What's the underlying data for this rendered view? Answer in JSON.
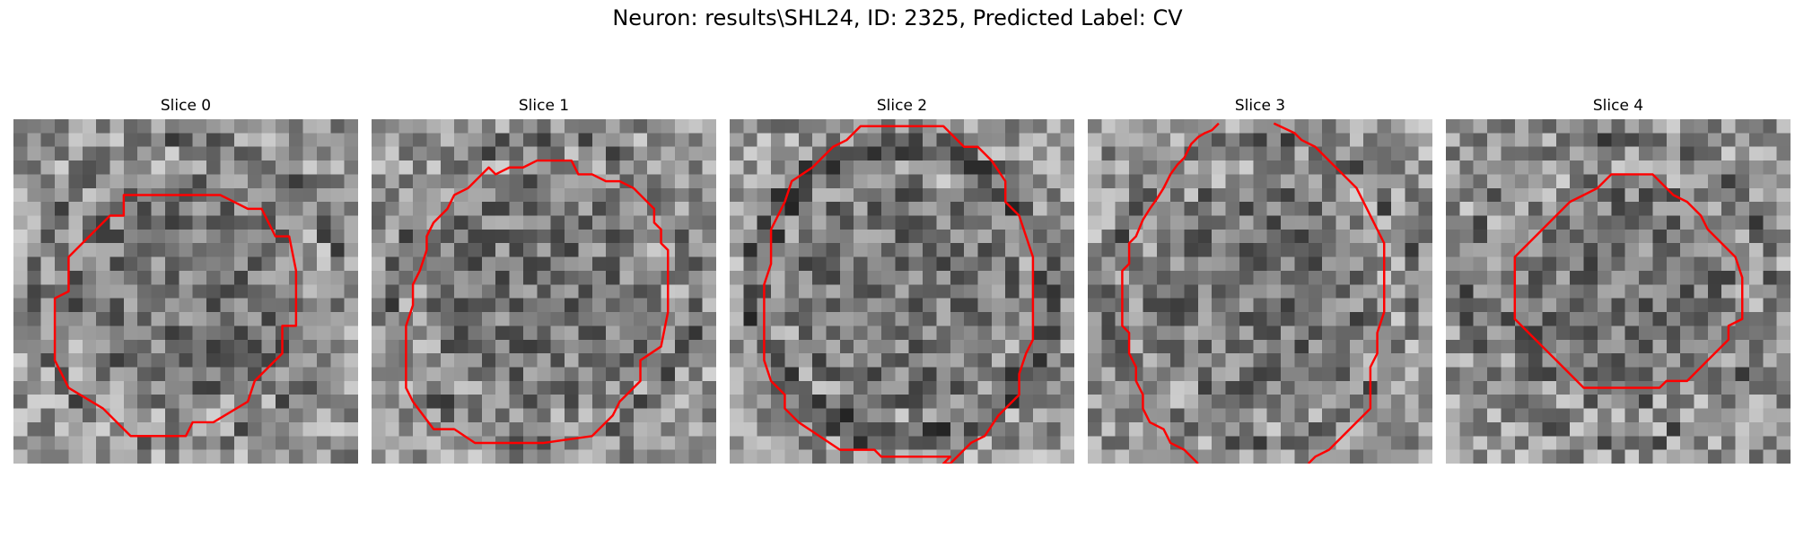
{
  "figure": {
    "title": "Neuron: results\\SHL24, ID: 2325, Predicted Label: CV"
  },
  "contour_color": "#ff0000",
  "colormap": "gray",
  "grid_cells": 25,
  "panels": [
    {
      "title": "Slice 0",
      "seed": 11,
      "dark_ring": false,
      "contour": [
        [
          8,
          5.5
        ],
        [
          15,
          5.5
        ],
        [
          17,
          6.5
        ],
        [
          18,
          6.5
        ],
        [
          19,
          8.5
        ],
        [
          20,
          8.5
        ],
        [
          20.5,
          11
        ],
        [
          20.5,
          15
        ],
        [
          19.5,
          15
        ],
        [
          19.5,
          17
        ],
        [
          17.5,
          19
        ],
        [
          17,
          20.5
        ],
        [
          14.5,
          22
        ],
        [
          13,
          22
        ],
        [
          12.5,
          23
        ],
        [
          8.5,
          23
        ],
        [
          8,
          22.5
        ],
        [
          6.5,
          21
        ],
        [
          4,
          19.5
        ],
        [
          3,
          17.5
        ],
        [
          3,
          13
        ],
        [
          4,
          12.5
        ],
        [
          4,
          10
        ],
        [
          7,
          7
        ],
        [
          8,
          7
        ]
      ]
    },
    {
      "title": "Slice 1",
      "seed": 23,
      "dark_ring": false,
      "contour": [
        [
          12,
          3
        ],
        [
          14.5,
          3
        ],
        [
          15,
          4
        ],
        [
          16,
          4
        ],
        [
          17,
          4.5
        ],
        [
          18,
          4.5
        ],
        [
          19,
          5
        ],
        [
          20.5,
          6.5
        ],
        [
          20.5,
          7.5
        ],
        [
          21,
          8
        ],
        [
          21,
          9
        ],
        [
          21.5,
          9.5
        ],
        [
          21.5,
          10.5
        ],
        [
          21.5,
          14
        ],
        [
          21,
          16.5
        ],
        [
          19.5,
          17.5
        ],
        [
          19.5,
          19
        ],
        [
          18,
          20.5
        ],
        [
          17.5,
          21.5
        ],
        [
          16,
          23
        ],
        [
          12.5,
          23.5
        ],
        [
          7.5,
          23.5
        ],
        [
          6,
          22.5
        ],
        [
          4.5,
          22.5
        ],
        [
          3,
          20.5
        ],
        [
          2.5,
          19.5
        ],
        [
          2.5,
          15
        ],
        [
          3,
          13.5
        ],
        [
          3,
          12
        ],
        [
          3.5,
          11
        ],
        [
          4,
          9.5
        ],
        [
          4,
          8.5
        ],
        [
          4.5,
          7.5
        ],
        [
          5,
          7
        ],
        [
          5.5,
          6.5
        ],
        [
          6,
          5.5
        ],
        [
          7,
          5
        ],
        [
          8,
          4
        ],
        [
          8.5,
          3.5
        ],
        [
          9,
          4
        ],
        [
          10,
          3.5
        ],
        [
          11,
          3.5
        ],
        [
          12,
          3
        ]
      ]
    },
    {
      "title": "Slice 2",
      "seed": 37,
      "dark_ring": true,
      "contour": [
        [
          10,
          0.5
        ],
        [
          15.5,
          0.5
        ],
        [
          17,
          2
        ],
        [
          18,
          2
        ],
        [
          19,
          3
        ],
        [
          20,
          4.5
        ],
        [
          20,
          6
        ],
        [
          21,
          7
        ],
        [
          21.5,
          8.5
        ],
        [
          22,
          10
        ],
        [
          22,
          16
        ],
        [
          21.5,
          17
        ],
        [
          21,
          18.5
        ],
        [
          21,
          20
        ],
        [
          19.5,
          21.5
        ],
        [
          18.5,
          23
        ],
        [
          17.5,
          23.5
        ],
        [
          16.5,
          24.5
        ],
        [
          16,
          25
        ],
        [
          15.5,
          25
        ],
        [
          16,
          24.5
        ],
        [
          11,
          24.5
        ],
        [
          10.5,
          24
        ],
        [
          8,
          24
        ],
        [
          6.5,
          23
        ],
        [
          5,
          22
        ],
        [
          4,
          21
        ],
        [
          4,
          20
        ],
        [
          3,
          19
        ],
        [
          2.5,
          17.5
        ],
        [
          2.5,
          12
        ],
        [
          3,
          10.5
        ],
        [
          3,
          8
        ],
        [
          3.5,
          7
        ],
        [
          4,
          6
        ],
        [
          4.5,
          4.5
        ],
        [
          6,
          3.5
        ],
        [
          7.5,
          2
        ],
        [
          8.5,
          1.5
        ],
        [
          9.5,
          0.5
        ],
        [
          10,
          0.5
        ]
      ]
    },
    {
      "title": "Slice 3",
      "seed": 51,
      "dark_ring": false,
      "open": true,
      "contour": [
        [
          9.5,
          0.3
        ],
        [
          9,
          0.8
        ],
        [
          8.5,
          1
        ],
        [
          8,
          1.3
        ],
        [
          7.5,
          1.8
        ],
        [
          7,
          2.8
        ],
        [
          6.5,
          3.3
        ],
        [
          6,
          4
        ],
        [
          5.5,
          5
        ],
        [
          5,
          5.8
        ],
        [
          4.5,
          6.5
        ],
        [
          4,
          7.3
        ],
        [
          3.5,
          8.5
        ],
        [
          3,
          9
        ],
        [
          3,
          10.5
        ],
        [
          2.5,
          11
        ],
        [
          2.5,
          12
        ],
        [
          2.5,
          13
        ],
        [
          2.5,
          14
        ],
        [
          2.5,
          15
        ],
        [
          3,
          15.5
        ],
        [
          3,
          17
        ],
        [
          3.5,
          18
        ],
        [
          3.5,
          19
        ],
        [
          4,
          20
        ],
        [
          4,
          21
        ],
        [
          4.5,
          22
        ],
        [
          5.5,
          22.5
        ],
        [
          6,
          23.5
        ],
        [
          7,
          24
        ],
        [
          7.5,
          24.5
        ],
        [
          8,
          25
        ]
      ]
    },
    {
      "title": "Slice 4",
      "seed": 67,
      "dark_ring": false,
      "contour": [
        [
          12.5,
          4
        ],
        [
          15,
          4
        ],
        [
          16.5,
          5.5
        ],
        [
          17.5,
          6
        ],
        [
          18.5,
          7
        ],
        [
          19,
          8
        ],
        [
          20,
          9
        ],
        [
          21,
          10
        ],
        [
          21.5,
          11.5
        ],
        [
          21.5,
          14.5
        ],
        [
          20.5,
          15
        ],
        [
          20.5,
          16
        ],
        [
          19,
          17.5
        ],
        [
          18.5,
          18
        ],
        [
          17.5,
          19
        ],
        [
          16,
          19
        ],
        [
          15.5,
          19.5
        ],
        [
          10,
          19.5
        ],
        [
          9,
          18.5
        ],
        [
          8,
          17.5
        ],
        [
          7,
          16.5
        ],
        [
          5,
          14.5
        ],
        [
          5,
          10
        ],
        [
          6,
          9
        ],
        [
          7,
          8
        ],
        [
          8,
          7
        ],
        [
          9,
          6
        ],
        [
          10,
          5.5
        ],
        [
          11,
          5
        ],
        [
          12,
          4
        ]
      ]
    }
  ]
}
